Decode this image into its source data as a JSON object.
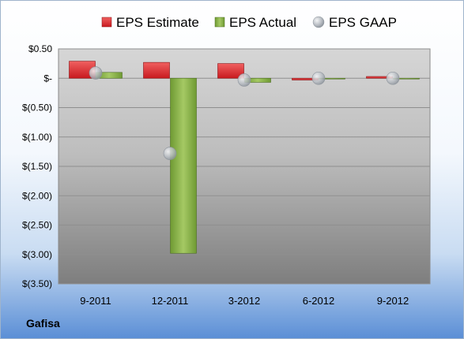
{
  "chart_data": {
    "type": "bar",
    "categories": [
      "9-2011",
      "12-2011",
      "3-2012",
      "6-2012",
      "9-2012"
    ],
    "series": [
      {
        "name": "EPS Estimate",
        "type": "bar",
        "values": [
          0.29,
          0.27,
          0.25,
          -0.03,
          0.03
        ]
      },
      {
        "name": "EPS Actual",
        "type": "bar",
        "values": [
          0.1,
          -2.98,
          -0.07,
          0.0,
          0.0
        ]
      },
      {
        "name": "EPS GAAP",
        "type": "scatter",
        "values": [
          0.09,
          -1.28,
          -0.03,
          0.0,
          0.0
        ]
      }
    ],
    "yticks": [
      "$0.50",
      "$-",
      "$(0.50)",
      "$(1.00)",
      "$(1.50)",
      "$(2.00)",
      "$(2.50)",
      "$(3.00)",
      "$(3.50)"
    ],
    "ylim": [
      -3.5,
      0.5
    ],
    "legend": "top",
    "grid": true,
    "colors": {
      "estimate": "#e0262c",
      "actual": "#8bb14a",
      "gaap": "#b9bec4"
    }
  },
  "company": "Gafisa"
}
